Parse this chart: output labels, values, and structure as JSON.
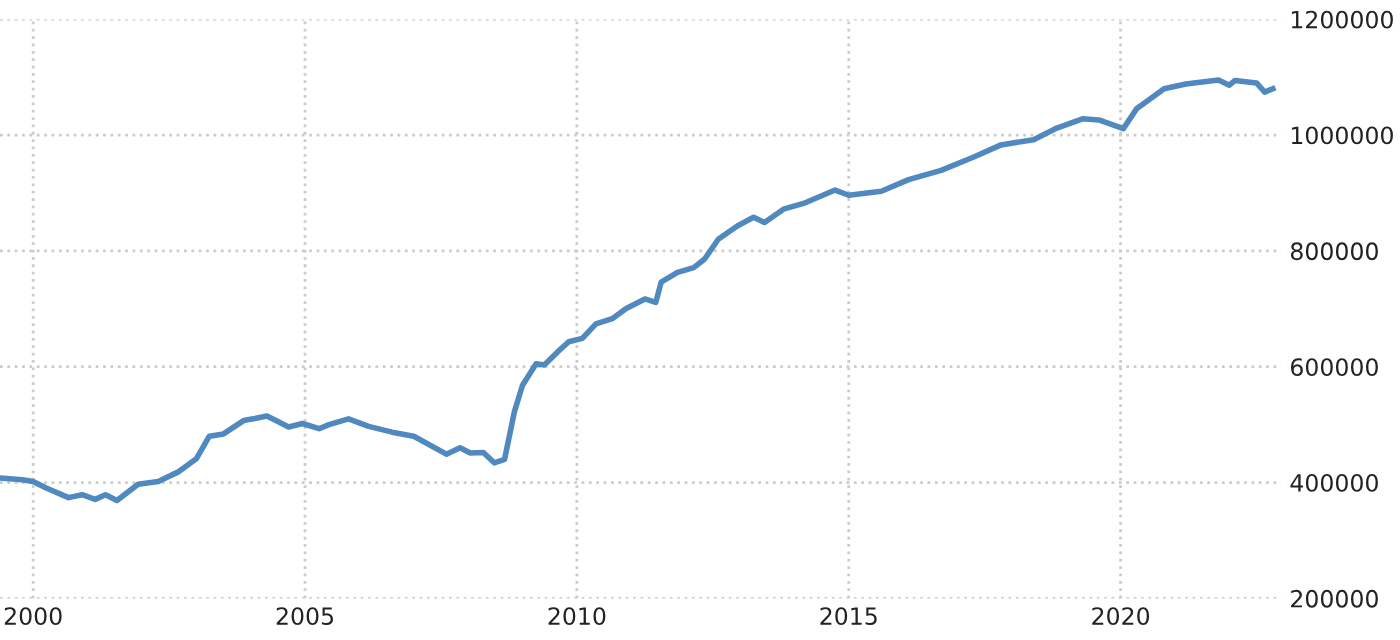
{
  "chart_data": {
    "type": "line",
    "x": [
      1999.39,
      1999.8,
      2000.0,
      2000.23,
      2000.65,
      2000.9,
      2001.14,
      2001.33,
      2001.54,
      2001.93,
      2002.3,
      2002.66,
      2003.0,
      2003.24,
      2003.5,
      2003.87,
      2004.05,
      2004.3,
      2004.7,
      2004.95,
      2005.26,
      2005.44,
      2005.8,
      2006.17,
      2006.6,
      2007.0,
      2007.6,
      2007.85,
      2008.04,
      2008.28,
      2008.48,
      2008.67,
      2008.85,
      2009.0,
      2009.25,
      2009.4,
      2009.65,
      2009.85,
      2010.1,
      2010.35,
      2010.65,
      2010.9,
      2011.25,
      2011.45,
      2011.55,
      2011.85,
      2012.15,
      2012.35,
      2012.6,
      2012.95,
      2013.25,
      2013.45,
      2013.8,
      2014.2,
      2014.75,
      2015.0,
      2015.6,
      2016.1,
      2016.7,
      2017.3,
      2017.8,
      2018.4,
      2018.8,
      2019.3,
      2019.6,
      2020.05,
      2020.3,
      2020.8,
      2021.2,
      2021.8,
      2022.0,
      2022.1,
      2022.5,
      2022.65,
      2022.8
    ],
    "series": [
      {
        "color": "#4f89bf",
        "values": [
          408000,
          405000,
          402000,
          391000,
          374000,
          379000,
          371000,
          379000,
          369000,
          397000,
          402000,
          418000,
          441000,
          480000,
          484000,
          507000,
          510000,
          515000,
          496000,
          502000,
          493000,
          500000,
          510000,
          497000,
          487000,
          480000,
          449000,
          460000,
          451000,
          452000,
          434000,
          440000,
          522000,
          568000,
          605000,
          603000,
          626000,
          643000,
          649000,
          674000,
          683000,
          700000,
          717000,
          711000,
          746000,
          763000,
          771000,
          786000,
          820000,
          843000,
          858000,
          849000,
          872000,
          883000,
          905000,
          896000,
          903000,
          923000,
          939000,
          962000,
          983000,
          992000,
          1011000,
          1028000,
          1026000,
          1011000,
          1046000,
          1080000,
          1088000,
          1095000,
          1086000,
          1094000,
          1090000,
          1074000,
          1080000
        ]
      }
    ],
    "xlim": [
      1999.39,
      2022.95
    ],
    "xticks": [
      2000,
      2005,
      2010,
      2015,
      2020
    ],
    "ylim": [
      200000,
      1200000
    ],
    "yticks": [
      200000,
      400000,
      600000,
      800000,
      1000000,
      1200000
    ],
    "grid": true,
    "line_style": "solid",
    "marker": "none"
  }
}
